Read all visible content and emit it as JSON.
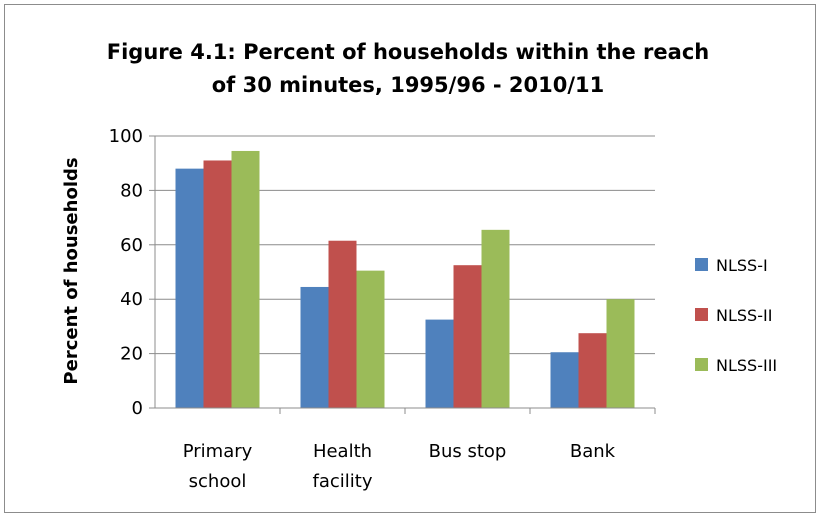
{
  "chart_data": {
    "type": "bar",
    "title_lines": [
      "Figure 4.1:  Percent of households within the reach",
      "of 30 minutes, 1995/96 - 2010/11"
    ],
    "ylabel": "Percent of households",
    "xlabel": "",
    "ylim": [
      0,
      100
    ],
    "yticks": [
      "0",
      "20",
      "40",
      "60",
      "80",
      "100"
    ],
    "categories": [
      [
        "Primary",
        "school"
      ],
      [
        "Health",
        "facility"
      ],
      [
        "Bus stop"
      ],
      [
        "Bank"
      ]
    ],
    "series": [
      {
        "name": "NLSS-I",
        "color": "#4f81bd",
        "values": [
          88,
          44.5,
          32.5,
          20.5
        ]
      },
      {
        "name": "NLSS-II",
        "color": "#c0504d",
        "values": [
          91,
          61.5,
          52.5,
          27.5
        ]
      },
      {
        "name": "NLSS-III",
        "color": "#9bbb59",
        "values": [
          94.5,
          50.5,
          65.5,
          40
        ]
      }
    ],
    "grid": true,
    "legend_position": "right"
  }
}
